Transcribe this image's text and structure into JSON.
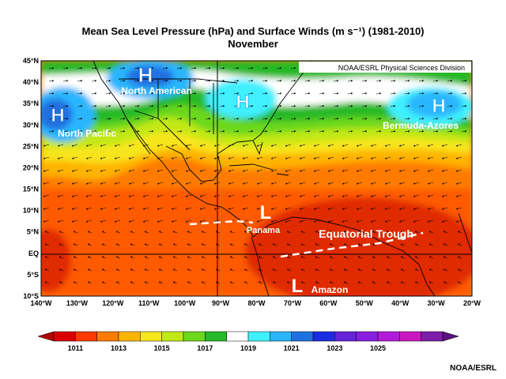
{
  "title": {
    "line1": "Mean Sea Level Pressure (hPa) and Surface Winds (m s⁻¹) (1981-2010)",
    "line2": "November"
  },
  "source_label": "NOAA/ESRL Physical Sciences Division",
  "credit": "NOAA/ESRL",
  "axes": {
    "lon_labels": [
      "140°W",
      "130°W",
      "120°W",
      "110°W",
      "100°W",
      "90°W",
      "80°W",
      "70°W",
      "60°W",
      "50°W",
      "40°W",
      "30°W",
      "20°W"
    ],
    "lat_labels": [
      "45°N",
      "40°N",
      "35°N",
      "30°N",
      "25°N",
      "20°N",
      "15°N",
      "10°N",
      "5°N",
      "EQ",
      "5°S",
      "10°S"
    ],
    "lon_range": [
      -140,
      -20
    ],
    "lat_range": [
      -10,
      45
    ]
  },
  "colorbar": {
    "labels": [
      "1011",
      "1013",
      "1015",
      "1017",
      "1019",
      "1021",
      "1023",
      "1025"
    ],
    "colors": [
      "#d90000",
      "#ff3a00",
      "#ff7b00",
      "#ffb400",
      "#f7e51e",
      "#c2e817",
      "#6cd81b",
      "#26b928",
      "#ffffff",
      "#3ff0ff",
      "#2ab6ff",
      "#2070e0",
      "#1a2ce0",
      "#6624d8",
      "#8a1ee0",
      "#b21cd8",
      "#c819c0",
      "#7d1ea8"
    ]
  },
  "labels": {
    "north_american": "North American",
    "north_pacific": "North Pacific",
    "bermuda": "Bermuda-Azores",
    "panama": "Panama",
    "trough": "Equatorial Trough",
    "amazon": "Amazon",
    "high": "H",
    "low": "L"
  }
}
